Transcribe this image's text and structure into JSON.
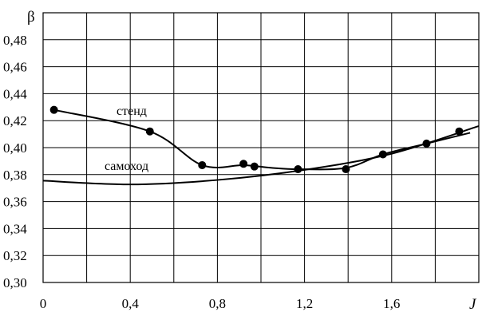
{
  "chart_data": {
    "type": "line",
    "xlabel": "J",
    "ylabel": "β",
    "xlim": [
      0,
      2.0
    ],
    "ylim": [
      0.3,
      0.5
    ],
    "x_ticks": [
      "0",
      "0,4",
      "0,8",
      "1,2",
      "1,6"
    ],
    "y_ticks": [
      "0,30",
      "0,32",
      "0,34",
      "0,36",
      "0,38",
      "0,40",
      "0,42",
      "0,44",
      "0,46",
      "0,48"
    ],
    "grid": true,
    "series": [
      {
        "name": "стенд",
        "points": [
          {
            "x": 0.05,
            "y": 0.428
          },
          {
            "x": 0.49,
            "y": 0.412
          },
          {
            "x": 0.73,
            "y": 0.387
          },
          {
            "x": 0.92,
            "y": 0.388
          },
          {
            "x": 0.97,
            "y": 0.386
          },
          {
            "x": 1.17,
            "y": 0.384
          },
          {
            "x": 1.39,
            "y": 0.384
          },
          {
            "x": 1.56,
            "y": 0.395
          },
          {
            "x": 1.76,
            "y": 0.403
          },
          {
            "x": 1.91,
            "y": 0.412
          }
        ],
        "curve": [
          {
            "x": 0.05,
            "y": 0.428
          },
          {
            "x": 0.49,
            "y": 0.412
          },
          {
            "x": 0.73,
            "y": 0.387
          },
          {
            "x": 0.92,
            "y": 0.387
          },
          {
            "x": 1.05,
            "y": 0.385
          },
          {
            "x": 1.17,
            "y": 0.384
          },
          {
            "x": 1.39,
            "y": 0.385
          },
          {
            "x": 1.56,
            "y": 0.395
          },
          {
            "x": 1.76,
            "y": 0.403
          },
          {
            "x": 1.96,
            "y": 0.411
          }
        ]
      },
      {
        "name": "самоход",
        "points": [],
        "curve": [
          {
            "x": 0.0,
            "y": 0.3755
          },
          {
            "x": 0.4,
            "y": 0.3727
          },
          {
            "x": 0.8,
            "y": 0.376
          },
          {
            "x": 1.2,
            "y": 0.3835
          },
          {
            "x": 1.6,
            "y": 0.3955
          },
          {
            "x": 2.0,
            "y": 0.416
          }
        ]
      }
    ]
  }
}
